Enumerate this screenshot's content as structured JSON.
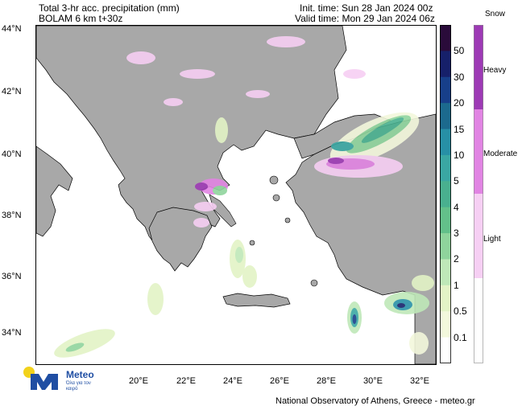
{
  "header": {
    "title_line1": "Total 3-hr acc. precipitation (mm)",
    "title_line2": "BOLAM 6 km t+30z",
    "init_time": "Init. time: Sun 28 Jan 2024 00z",
    "valid_time": "Valid time: Mon 29 Jan 2024 06z"
  },
  "axes": {
    "lat_labels": [
      "44°N",
      "42°N",
      "40°N",
      "38°N",
      "36°N",
      "34°N"
    ],
    "lon_labels": [
      "20°E",
      "22°E",
      "24°E",
      "26°E",
      "28°E",
      "30°E",
      "32°E"
    ]
  },
  "colorbar": {
    "labels": [
      "50",
      "30",
      "20",
      "15",
      "10",
      "5",
      "4",
      "3",
      "2",
      "1",
      "0.5",
      "0.1"
    ],
    "colors": [
      "#2a0b3a",
      "#16206a",
      "#173f8a",
      "#1c6a8e",
      "#2790a6",
      "#3aa7a3",
      "#49b08f",
      "#63c08a",
      "#8fd49c",
      "#bfe8b8",
      "#e3f3c6",
      "#f3f8dc",
      "#ffffff"
    ]
  },
  "snow_bar": {
    "title": "Snow",
    "labels": [
      "Heavy",
      "Moderate",
      "Light"
    ],
    "colors": [
      "#9d3ab5",
      "#e184e3",
      "#f6cff3",
      "#ffffff"
    ]
  },
  "colors": {
    "sea": "#ffffff",
    "land": "#a8a8a8",
    "border": "#000000"
  },
  "logo": {
    "name": "Meteo",
    "tagline": "Όλα για τον καιρό",
    "sun_color": "#f2d21b",
    "brand_color": "#1f4ea3"
  },
  "footer": "National Observatory of Athens, Greece - meteo.gr"
}
